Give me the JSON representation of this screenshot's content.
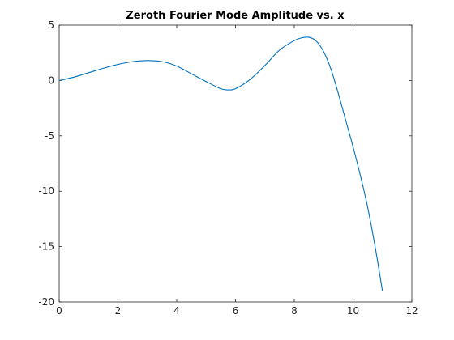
{
  "chart_data": {
    "type": "line",
    "title": "Zeroth Fourier Mode Amplitude vs. x",
    "xlabel": "",
    "ylabel": "",
    "xlim": [
      0,
      12
    ],
    "ylim": [
      -20,
      5
    ],
    "xticks": [
      0,
      2,
      4,
      6,
      8,
      10,
      12
    ],
    "yticks": [
      5,
      0,
      -5,
      -10,
      -15,
      -20
    ],
    "grid": false,
    "series": [
      {
        "color": "#0072BD",
        "x": [
          0,
          0.5,
          1,
          1.5,
          2,
          2.5,
          3,
          3.5,
          4,
          4.5,
          5,
          5.5,
          5.75,
          6,
          6.5,
          7,
          7.5,
          8,
          8.25,
          8.5,
          8.75,
          9,
          9.25,
          9.5,
          9.75,
          10,
          10.25,
          10.5,
          10.75,
          11
        ],
        "y": [
          0,
          0.3,
          0.7,
          1.1,
          1.45,
          1.7,
          1.8,
          1.7,
          1.3,
          0.6,
          -0.1,
          -0.75,
          -0.85,
          -0.75,
          0.1,
          1.35,
          2.75,
          3.6,
          3.85,
          3.9,
          3.55,
          2.6,
          1.0,
          -1.2,
          -3.6,
          -6.0,
          -8.6,
          -11.5,
          -15.0,
          -19.0
        ]
      }
    ]
  }
}
